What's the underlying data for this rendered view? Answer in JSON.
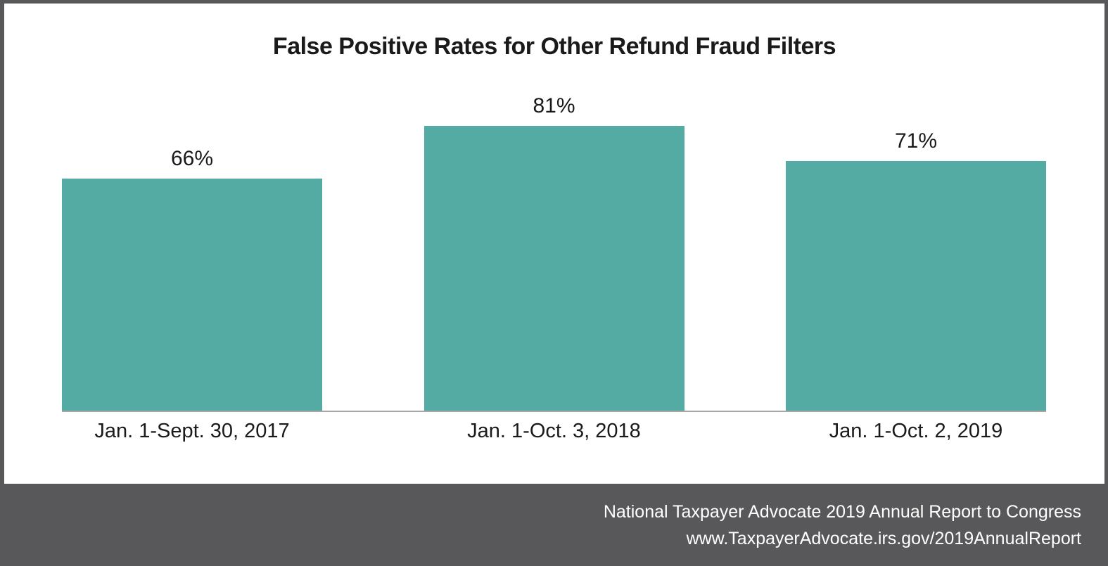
{
  "chart_data": {
    "type": "bar",
    "title": "False Positive Rates for Other Refund Fraud Filters",
    "categories": [
      "Jan. 1-Sept. 30, 2017",
      "Jan. 1-Oct. 3, 2018",
      "Jan. 1-Oct. 2, 2019"
    ],
    "values": [
      66,
      81,
      71
    ],
    "value_labels": [
      "66%",
      "81%",
      "71%"
    ],
    "unit": "%",
    "ylim": [
      0,
      100
    ],
    "grid": false,
    "legend": false,
    "bar_color": "#54ABA3",
    "axis_line_color": "#A6A6A6",
    "label_color": "#1A1A1A"
  },
  "footer": {
    "line1": "National Taxpayer Advocate 2019 Annual Report to Congress",
    "line2": "www.TaxpayerAdvocate.irs.gov/2019AnnualReport",
    "background": "#58585A",
    "text_color": "#FFFFFF"
  },
  "frame": {
    "border_color": "#58585A",
    "background": "#FFFFFF"
  }
}
